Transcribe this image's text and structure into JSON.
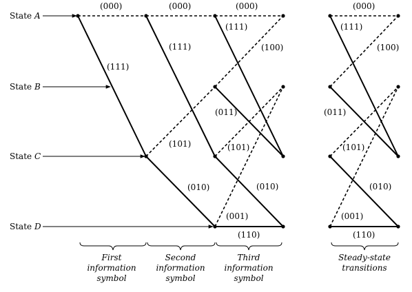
{
  "states": {
    "a_prefix": "State",
    "a_letter": "A",
    "b_prefix": "State",
    "b_letter": "B",
    "c_prefix": "State",
    "c_letter": "C",
    "d_prefix": "State",
    "d_letter": "D"
  },
  "branch_labels": {
    "top_000_1": "(000)",
    "top_000_2": "(000)",
    "top_000_3": "(000)",
    "top_000_4": "(000)",
    "first_111": "(111)",
    "second_111": "(111)",
    "third_111": "(111)",
    "steady_111": "(111)",
    "third_100": "(100)",
    "steady_100": "(100)",
    "third_011": "(011)",
    "steady_011": "(011)",
    "second_101": "(101)",
    "third_101": "(101)",
    "steady_101": "(101)",
    "second_010": "(010)",
    "third_010": "(010)",
    "steady_010": "(010)",
    "third_001": "(001)",
    "steady_001": "(001)",
    "third_110": "(110)",
    "steady_110": "(110)"
  },
  "captions": {
    "first_line1": "First",
    "first_line2": "information",
    "first_line3": "symbol",
    "second_line1": "Second",
    "second_line2": "information",
    "second_line3": "symbol",
    "third_line1": "Third",
    "third_line2": "information",
    "third_line3": "symbol",
    "steady_line1": "Steady-state",
    "steady_line2": "transitions"
  }
}
